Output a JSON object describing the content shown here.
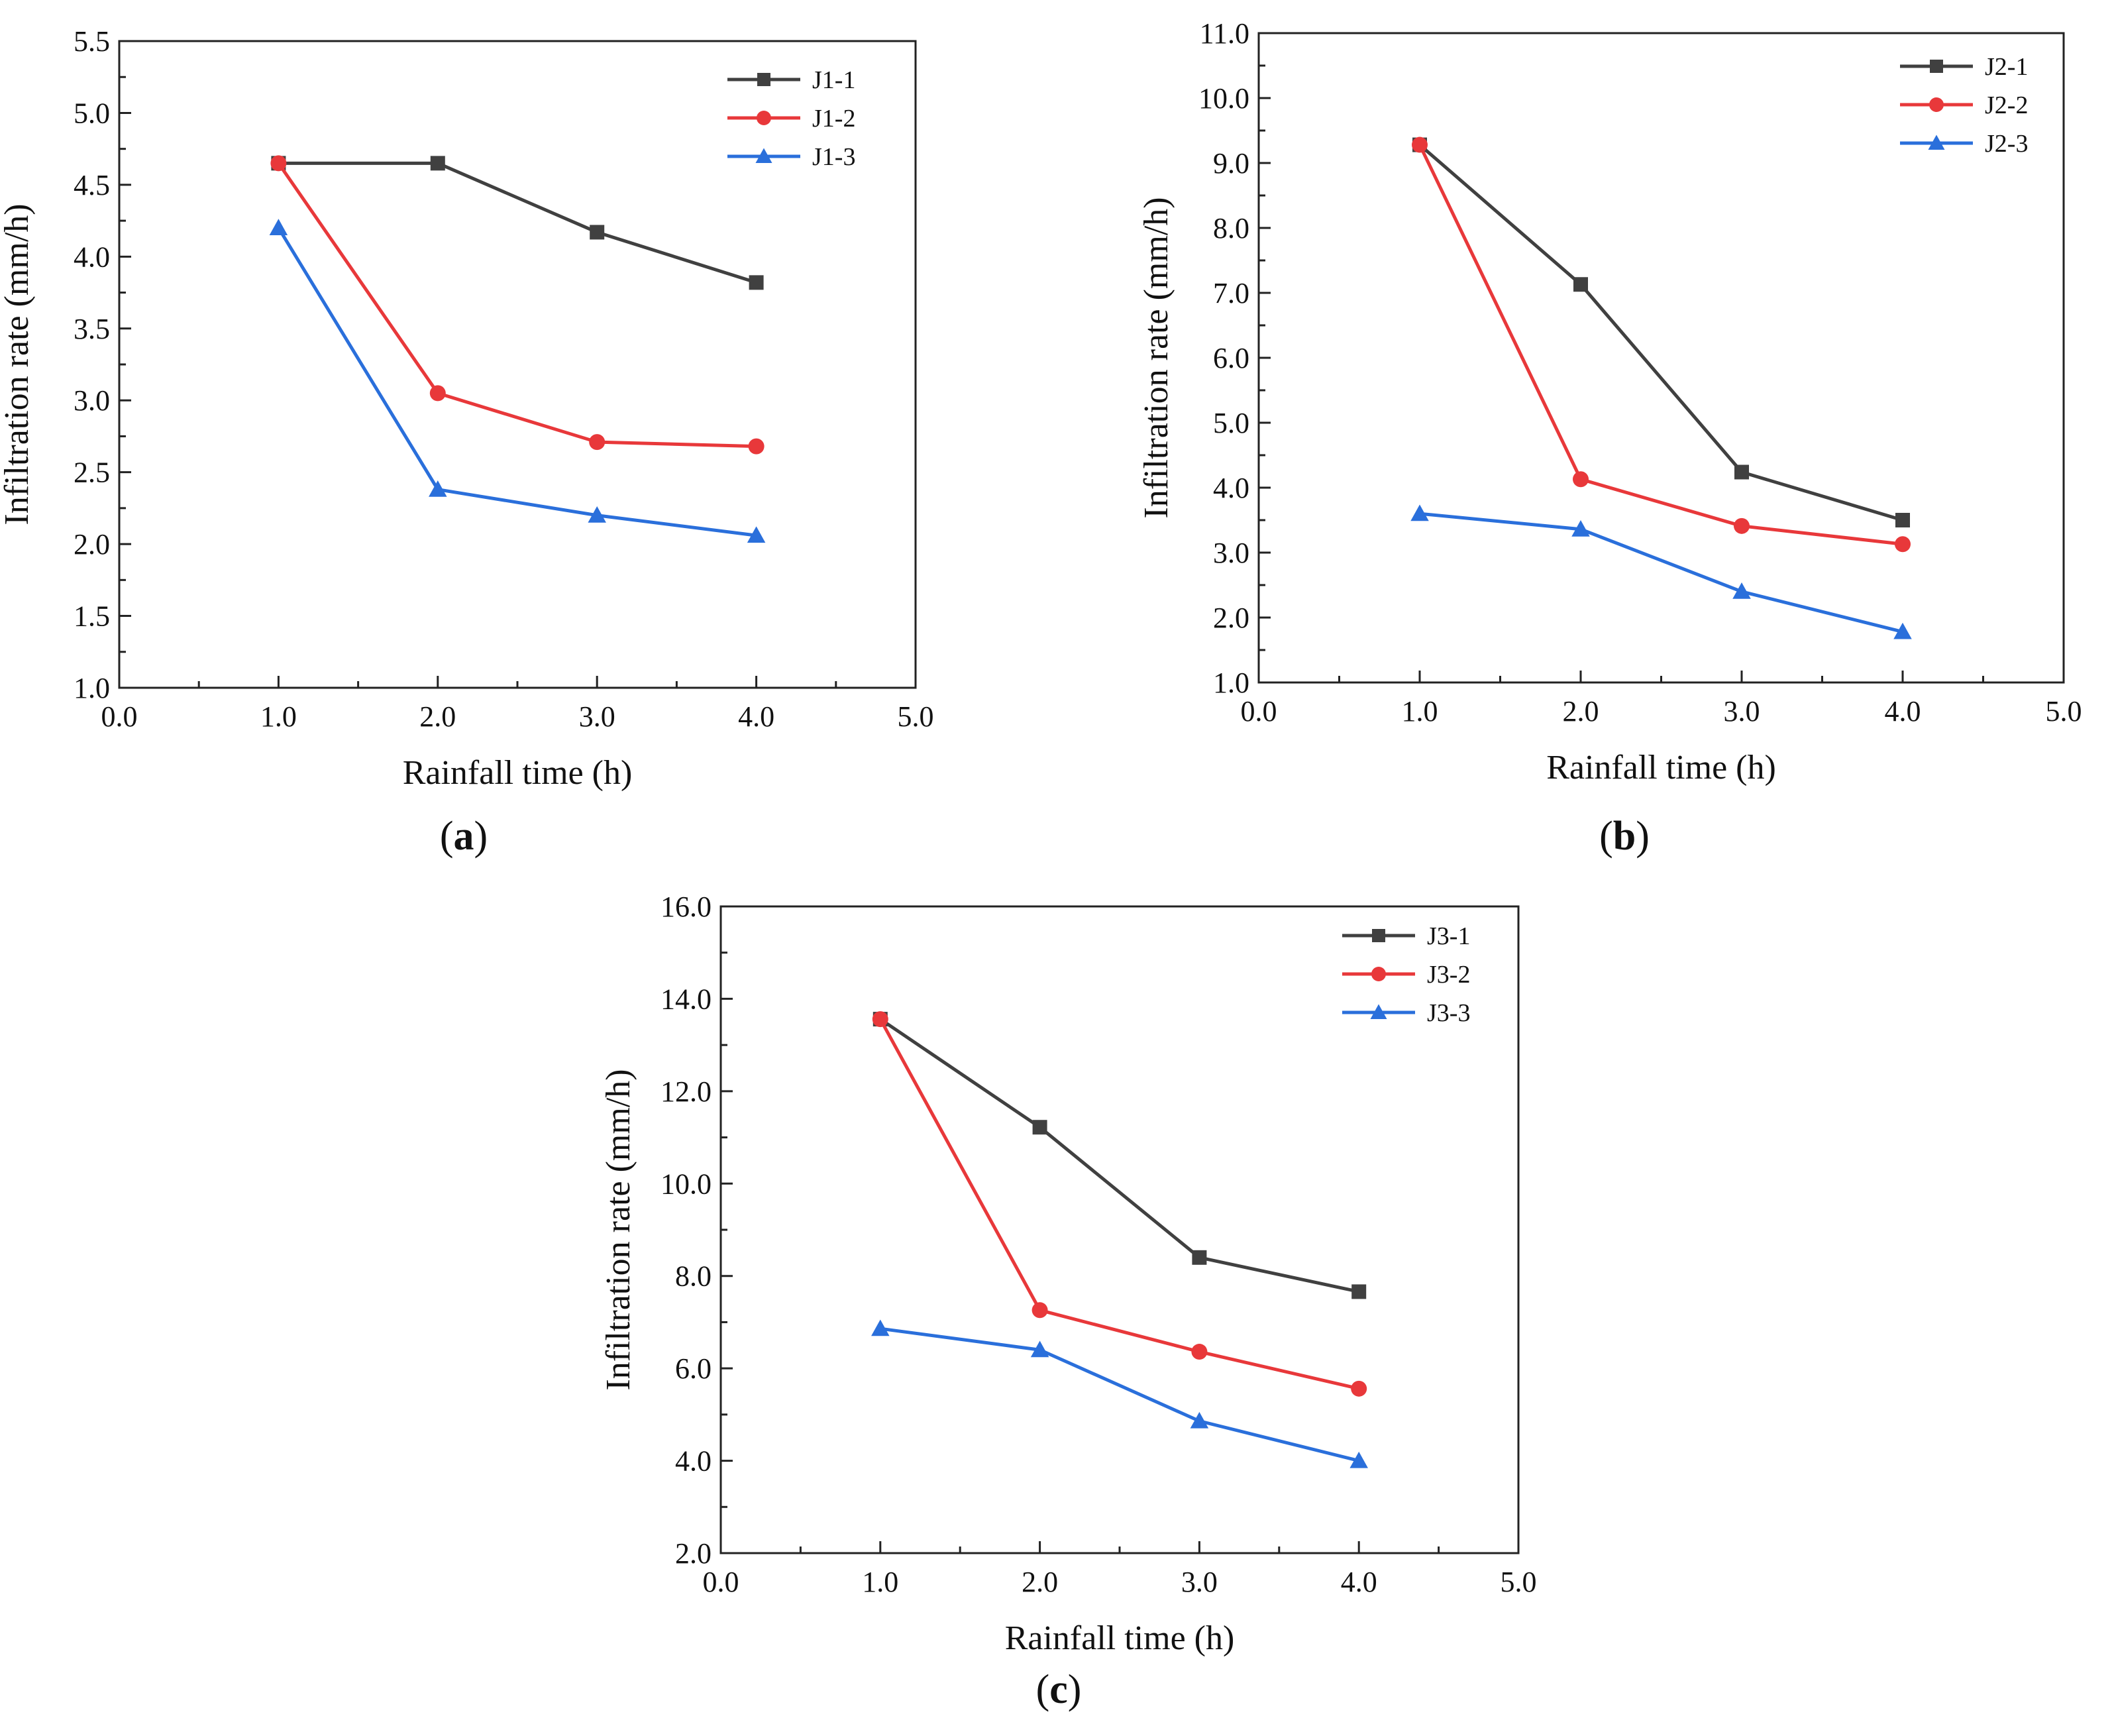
{
  "chart_data": [
    {
      "type": "line",
      "panel_label": "a",
      "xlabel": "Rainfall time (h)",
      "ylabel": "Infiltration rate (mm/h)",
      "xlim": [
        0.0,
        5.0
      ],
      "ylim": [
        1.0,
        5.5
      ],
      "xticks": [
        "0.0",
        "1.0",
        "2.0",
        "3.0",
        "4.0",
        "5.0"
      ],
      "yticks": [
        "1.0",
        "1.5",
        "2.0",
        "2.5",
        "3.0",
        "3.5",
        "4.0",
        "4.5",
        "5.0",
        "5.5"
      ],
      "grid": false,
      "legend_position": "top-right",
      "x": [
        1.0,
        2.0,
        3.0,
        4.0
      ],
      "series": [
        {
          "name": "J1-1",
          "color": "#404040",
          "marker": "square",
          "values": [
            4.65,
            4.65,
            4.17,
            3.82
          ]
        },
        {
          "name": "J1-2",
          "color": "#e8383a",
          "marker": "circle",
          "values": [
            4.65,
            3.05,
            2.71,
            2.68
          ]
        },
        {
          "name": "J1-3",
          "color": "#2a6fdb",
          "marker": "triangle",
          "values": [
            4.2,
            2.38,
            2.2,
            2.06
          ]
        }
      ]
    },
    {
      "type": "line",
      "panel_label": "b",
      "xlabel": "Rainfall time (h)",
      "ylabel": "Infiltration rate (mm/h)",
      "xlim": [
        0.0,
        5.0
      ],
      "ylim": [
        1.0,
        11.0
      ],
      "xticks": [
        "0.0",
        "1.0",
        "2.0",
        "3.0",
        "4.0",
        "5.0"
      ],
      "yticks": [
        "1.0",
        "2.0",
        "3.0",
        "4.0",
        "5.0",
        "6.0",
        "7.0",
        "8.0",
        "9.0",
        "10.0",
        "11.0"
      ],
      "grid": false,
      "legend_position": "top-right",
      "x": [
        1.0,
        2.0,
        3.0,
        4.0
      ],
      "series": [
        {
          "name": "J2-1",
          "color": "#404040",
          "marker": "square",
          "values": [
            9.28,
            7.13,
            4.24,
            3.5
          ]
        },
        {
          "name": "J2-2",
          "color": "#e8383a",
          "marker": "circle",
          "values": [
            9.28,
            4.13,
            3.41,
            3.13
          ]
        },
        {
          "name": "J2-3",
          "color": "#2a6fdb",
          "marker": "triangle",
          "values": [
            3.6,
            3.36,
            2.4,
            1.78
          ]
        }
      ]
    },
    {
      "type": "line",
      "panel_label": "c",
      "xlabel": "Rainfall time (h)",
      "ylabel": "Infiltration rate (mm/h)",
      "xlim": [
        0.0,
        5.0
      ],
      "ylim": [
        2.0,
        16.0
      ],
      "xticks": [
        "0.0",
        "1.0",
        "2.0",
        "3.0",
        "4.0",
        "5.0"
      ],
      "yticks": [
        "2.0",
        "4.0",
        "6.0",
        "8.0",
        "10.0",
        "12.0",
        "14.0",
        "16.0"
      ],
      "grid": false,
      "legend_position": "top-right",
      "x": [
        1.0,
        2.0,
        3.0,
        4.0
      ],
      "series": [
        {
          "name": "J3-1",
          "color": "#404040",
          "marker": "square",
          "values": [
            13.56,
            11.22,
            8.4,
            7.66
          ]
        },
        {
          "name": "J3-2",
          "color": "#e8383a",
          "marker": "circle",
          "values": [
            13.56,
            7.26,
            6.36,
            5.56
          ]
        },
        {
          "name": "J3-3",
          "color": "#2a6fdb",
          "marker": "triangle",
          "values": [
            6.86,
            6.4,
            4.86,
            4.0
          ]
        }
      ]
    }
  ]
}
